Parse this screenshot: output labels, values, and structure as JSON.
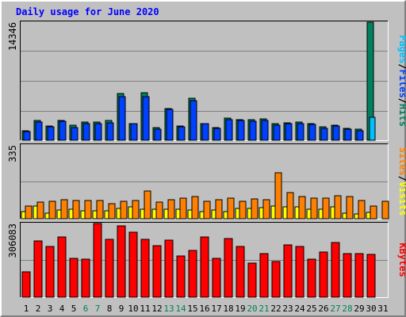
{
  "chart_data": {
    "type": "bar",
    "title": "Daily usage for June 2020",
    "colors": {
      "background": "#c0c0c0",
      "title": "#0000ff",
      "hits": "#00805c",
      "files": "#0040ff",
      "pages": "#00c0ff",
      "visits": "#ffff00",
      "sites": "#ff8000",
      "kbytes": "#ff0000",
      "weekend_tick": "#00805c",
      "tick": "#000000",
      "separator": "#000000"
    },
    "days": [
      "1",
      "2",
      "3",
      "4",
      "5",
      "6",
      "7",
      "8",
      "9",
      "10",
      "11",
      "12",
      "13",
      "14",
      "15",
      "16",
      "17",
      "18",
      "19",
      "20",
      "21",
      "22",
      "23",
      "24",
      "25",
      "26",
      "27",
      "28",
      "29",
      "30",
      "31"
    ],
    "weekend_days": [
      "6",
      "7",
      "13",
      "14",
      "20",
      "21",
      "27",
      "28"
    ],
    "panels": [
      {
        "id": "hits-files-pages",
        "ymax_label": "14346",
        "ymax": 14346,
        "label_parts": [
          {
            "text": "Pages",
            "color": "#00c0ff"
          },
          {
            "text": "/",
            "color": "#000000"
          },
          {
            "text": "Files",
            "color": "#0040ff"
          },
          {
            "text": "/",
            "color": "#000000"
          },
          {
            "text": "Hits",
            "color": "#00805c"
          }
        ],
        "series": [
          {
            "name": "Hits",
            "color": "#00805c",
            "values": [
              1150,
              2380,
              1690,
              2380,
              1840,
              2230,
              2230,
              2380,
              5700,
              2010,
              5780,
              1530,
              3830,
              1690,
              5090,
              2010,
              1530,
              2690,
              2530,
              2530,
              2610,
              1990,
              2110,
              2180,
              2010,
              1610,
              1840,
              1450,
              1340,
              14346,
              null
            ]
          },
          {
            "name": "Files",
            "color": "#0040ff",
            "values": [
              1070,
              2170,
              1610,
              2290,
              1530,
              2060,
              2060,
              2140,
              5320,
              1990,
              5320,
              1380,
              3750,
              1610,
              4860,
              1990,
              1450,
              2530,
              2370,
              2290,
              2370,
              1840,
              2010,
              2010,
              1920,
              1450,
              1690,
              1300,
              1150,
              null,
              null
            ]
          },
          {
            "name": "Pages",
            "color": "#00c0ff",
            "values": [
              null,
              null,
              null,
              null,
              null,
              null,
              null,
              null,
              null,
              null,
              null,
              null,
              null,
              null,
              null,
              null,
              null,
              null,
              null,
              null,
              null,
              null,
              null,
              null,
              null,
              null,
              null,
              null,
              null,
              2840,
              null
            ]
          }
        ]
      },
      {
        "id": "visits-sites",
        "ymax_label": "335",
        "ymax": 335,
        "label_parts": [
          {
            "text": "Sites",
            "color": "#ff8000"
          },
          {
            "text": "/",
            "color": "#000000"
          },
          {
            "text": "Visits",
            "color": "#ffff00"
          }
        ],
        "series": [
          {
            "name": "Visits",
            "color": "#ffff00",
            "values": [
              32,
              59,
              25,
              40,
              42,
              37,
              35,
              35,
              48,
              55,
              45,
              45,
              43,
              42,
              39,
              32,
              38,
              33,
              48,
              46,
              52,
              58,
              54,
              54,
              44,
              43,
              54,
              24,
              21,
              30,
              null
            ]
          },
          {
            "name": "Sites",
            "color": "#ff8000",
            "values": [
              58,
              75,
              80,
              85,
              83,
              83,
              83,
              70,
              78,
              83,
              125,
              75,
              87,
              93,
              100,
              80,
              85,
              95,
              78,
              91,
              86,
              210,
              120,
              101,
              92,
              92,
              105,
              100,
              83,
              57,
              78
            ]
          }
        ]
      },
      {
        "id": "kbytes",
        "ymax_label": "306083",
        "ymax": 306083,
        "label_parts": [
          {
            "text": "KBytes",
            "color": "#ff0000"
          }
        ],
        "series": [
          {
            "name": "KBytes",
            "color": "#ff0000",
            "values": [
              105000,
              235000,
              210000,
              250000,
              160000,
              157000,
              306083,
              240000,
              295000,
              270000,
              240000,
              215000,
              237000,
              170000,
              195000,
              250000,
              161000,
              245000,
              212000,
              142000,
              180000,
              147000,
              218000,
              212000,
              157000,
              188000,
              228000,
              182000,
              182000,
              178000,
              null
            ]
          }
        ]
      }
    ]
  }
}
